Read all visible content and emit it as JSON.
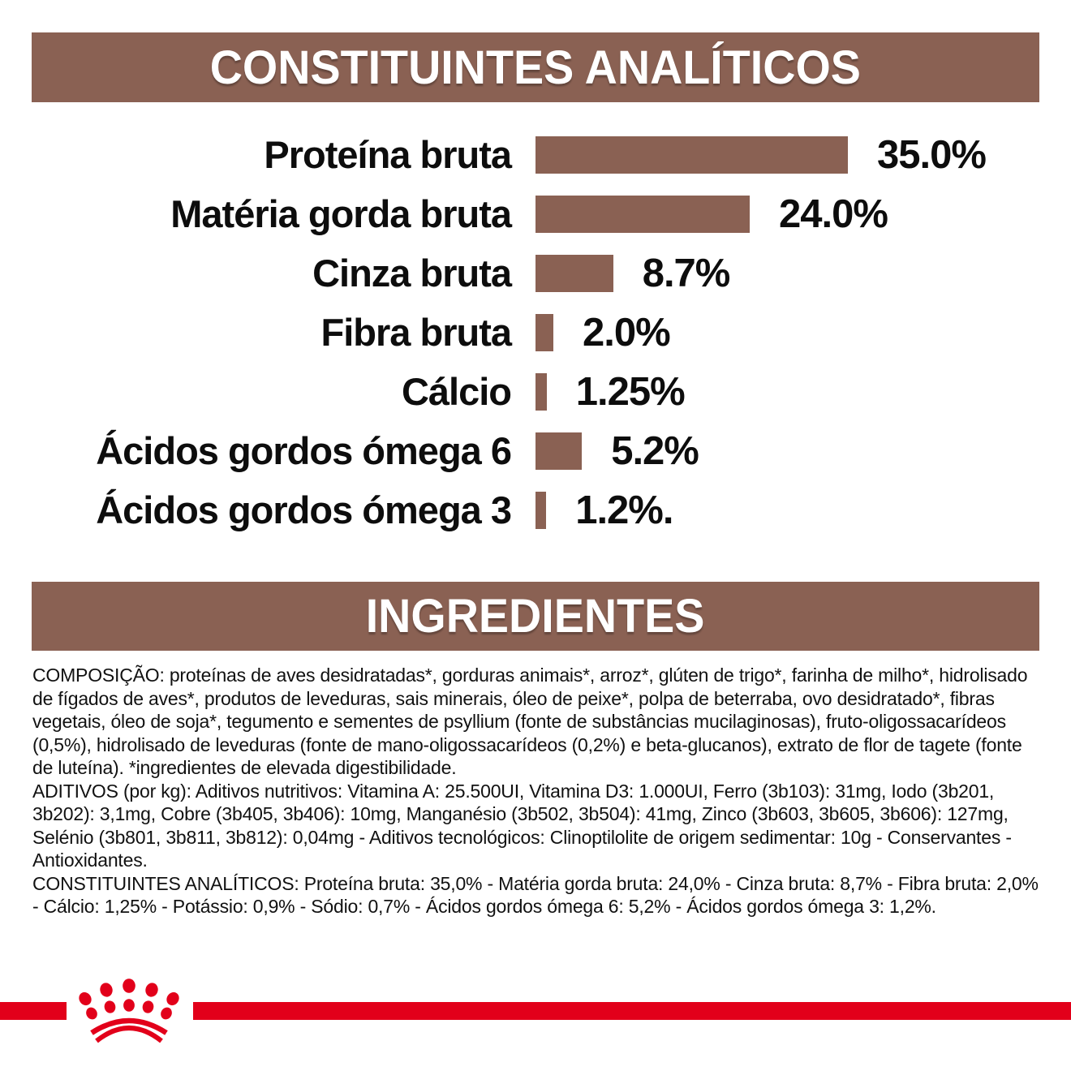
{
  "header": {
    "title": "CONSTITUINTES ANALÍTICOS"
  },
  "chart_data": {
    "type": "bar",
    "orientation": "horizontal",
    "title": "CONSTITUINTES ANALÍTICOS",
    "categories": [
      "Proteína bruta",
      "Matéria gorda bruta",
      "Cinza bruta",
      "Fibra bruta",
      "Cálcio",
      "Ácidos gordos ómega 6",
      "Ácidos gordos ómega 3"
    ],
    "values": [
      35.0,
      24.0,
      8.7,
      2.0,
      1.25,
      5.2,
      1.2
    ],
    "value_labels": [
      "35.0%",
      "24.0%",
      "8.7%",
      "2.0%",
      "1.25%",
      "5.2%",
      "1.2%."
    ],
    "xlim": [
      0,
      35
    ],
    "bar_color": "#8A6153",
    "grid": false,
    "legend": false
  },
  "ingredients_header": {
    "title": "INGREDIENTES"
  },
  "ingredients": {
    "paragraphs": [
      "COMPOSIÇÃO: proteínas de aves desidratadas*, gorduras animais*, arroz*, glúten de trigo*, farinha de milho*, hidrolisado de fígados de aves*, produtos de leveduras, sais minerais, óleo de peixe*, polpa de beterraba, ovo desidratado*, fibras vegetais, óleo de soja*, tegumento e sementes de psyllium (fonte de substâncias mucilaginosas), fruto-oligossacarídeos (0,5%), hidrolisado de leveduras (fonte de mano-oligossacarídeos (0,2%) e beta-glucanos), extrato de flor de tagete (fonte de luteína). *ingredientes de elevada digestibilidade.",
      "ADITIVOS (por kg): Aditivos nutritivos: Vitamina A: 25.500UI, Vitamina D3: 1.000UI, Ferro (3b103): 31mg, Iodo (3b201, 3b202): 3,1mg, Cobre (3b405, 3b406): 10mg, Manganésio (3b502, 3b504): 41mg, Zinco (3b603, 3b605, 3b606): 127mg, Selénio (3b801, 3b811, 3b812): 0,04mg - Aditivos tecnológicos: Clinoptilolite de origem sedimentar: 10g - Conservantes - Antioxidantes.",
      "CONSTITUINTES ANALÍTICOS: Proteína bruta: 35,0% - Matéria gorda bruta: 24,0% - Cinza bruta: 8,7% - Fibra bruta: 2,0% - Cálcio: 1,25% - Potássio: 0,9% - Sódio: 0,7% - Ácidos gordos ómega 6: 5,2% - Ácidos gordos ómega 3: 1,2%."
    ]
  },
  "colors": {
    "brown": "#8A6153",
    "brand_red": "#E2001A",
    "text": "#111111",
    "banner_text": "#FFFFFF",
    "background": "#FFFFFF"
  },
  "footer": {
    "brand_icon": "royal-canin-crown"
  }
}
